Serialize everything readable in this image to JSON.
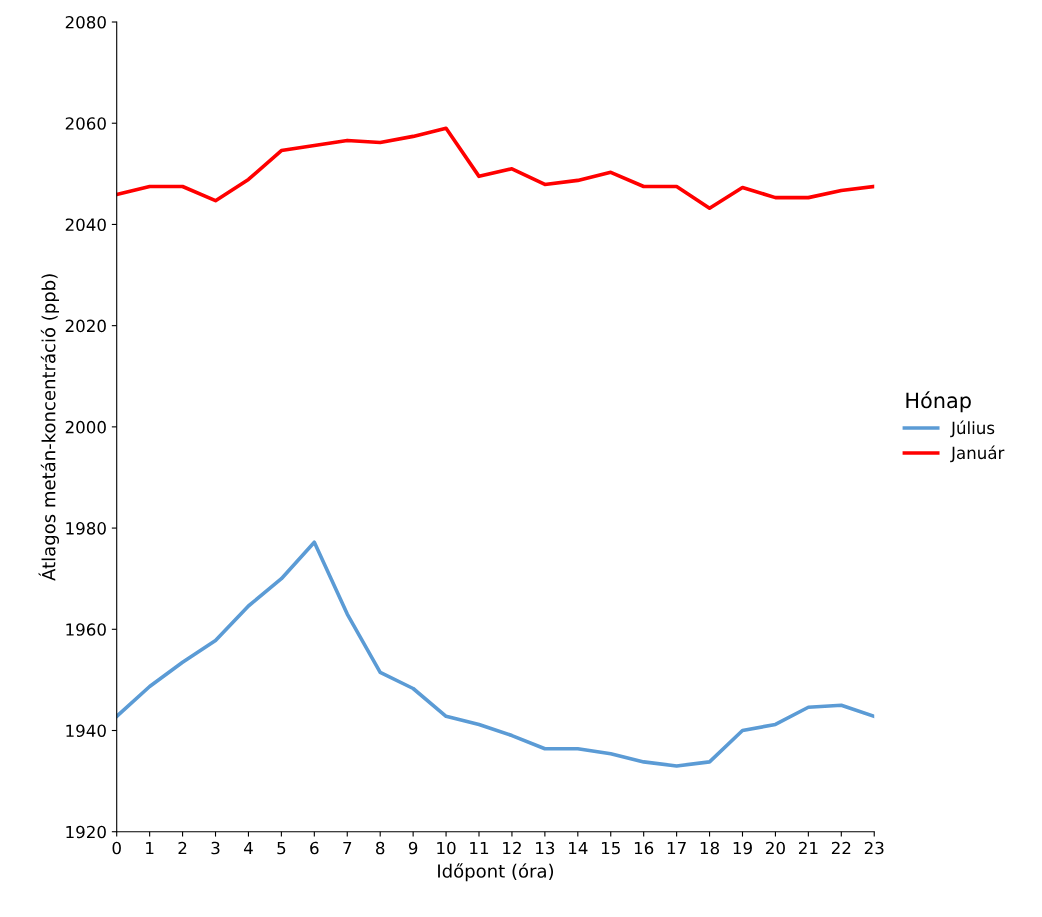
{
  "chart_data": {
    "type": "line",
    "xlabel": "Időpont (óra)",
    "ylabel": "Átlagos metán-koncentráció (ppb)",
    "legend_title": "Hónap",
    "legend": "right",
    "grid": false,
    "marker": "none",
    "line_style": "solid",
    "x": [
      0,
      1,
      2,
      3,
      4,
      5,
      6,
      7,
      8,
      9,
      10,
      11,
      12,
      13,
      14,
      15,
      16,
      17,
      18,
      19,
      20,
      21,
      22,
      23
    ],
    "xlim": [
      0,
      23
    ],
    "xticks": [
      0,
      1,
      2,
      3,
      4,
      5,
      6,
      7,
      8,
      9,
      10,
      11,
      12,
      13,
      14,
      15,
      16,
      17,
      18,
      19,
      20,
      21,
      22,
      23
    ],
    "ylim": [
      1920,
      2080
    ],
    "yticks": [
      1920,
      1940,
      1960,
      1980,
      2000,
      2020,
      2040,
      2060,
      2080
    ],
    "series": [
      {
        "name": "Július",
        "color": "#5b9bd5",
        "values": [
          1942.8,
          1948.7,
          1953.5,
          1957.8,
          1964.6,
          1970,
          1977.2,
          1963,
          1951.5,
          1948.3,
          1942.8,
          1941.2,
          1939,
          1936.4,
          1936.4,
          1935.4,
          1933.8,
          1933,
          1933.8,
          1940,
          1941.2,
          1944.6,
          1945,
          1942.8
        ]
      },
      {
        "name": "Január",
        "color": "#ff0000",
        "values": [
          2045.9,
          2047.5,
          2047.5,
          2044.7,
          2048.9,
          2054.6,
          2055.6,
          2056.6,
          2056.2,
          2057.4,
          2059,
          2049.5,
          2051,
          2047.9,
          2048.7,
          2050.3,
          2047.5,
          2047.5,
          2043.2,
          2047.3,
          2045.3,
          2045.3,
          2046.7,
          2047.5
        ]
      }
    ]
  }
}
